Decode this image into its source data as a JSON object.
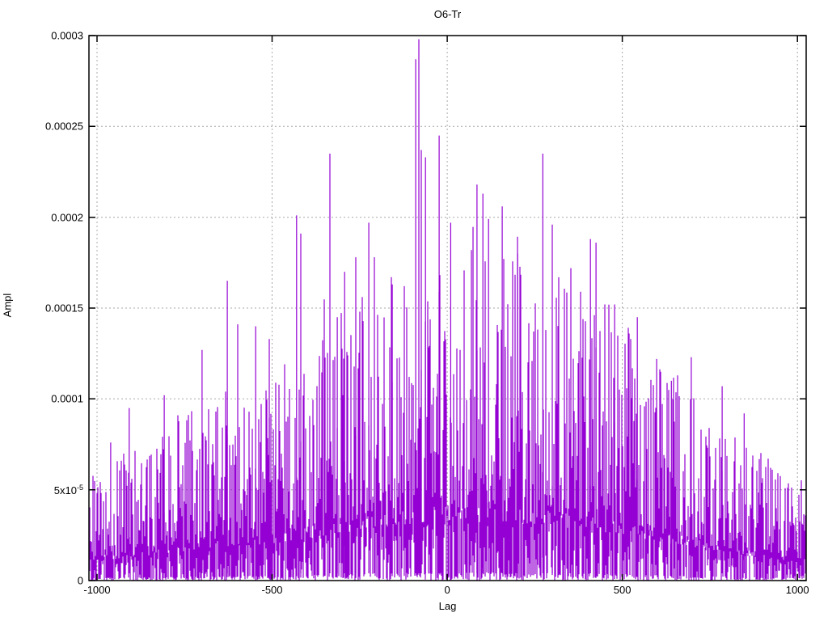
{
  "chart_data": {
    "type": "line",
    "title": "O6-Tr",
    "xlabel": "Lag",
    "ylabel": "Ampl",
    "xlim": [
      -1023,
      1025
    ],
    "ylim": [
      0,
      0.0003
    ],
    "line_color": "#9400d3",
    "background": "#ffffff",
    "border_color": "#000000",
    "grid": {
      "show": true,
      "style": "dotted",
      "color": "#a8a8a8"
    },
    "legend": {
      "show": false
    },
    "xticks": [
      {
        "value": -1000,
        "label": "-1000"
      },
      {
        "value": -500,
        "label": "-500"
      },
      {
        "value": 0,
        "label": "0"
      },
      {
        "value": 500,
        "label": "500"
      },
      {
        "value": 1000,
        "label": "1000"
      }
    ],
    "yticks": [
      {
        "value": 0,
        "label": "0"
      },
      {
        "value": 5e-05,
        "label_base": "5x10",
        "label_sup": "-5"
      },
      {
        "value": 0.0001,
        "label": "0.0001"
      },
      {
        "value": 0.00015,
        "label": "0.00015"
      },
      {
        "value": 0.0002,
        "label": "0.0002"
      },
      {
        "value": 0.00025,
        "label": "0.00025"
      },
      {
        "value": 0.0003,
        "label": "0.0003"
      }
    ],
    "series_summary": {
      "description": "Dense noisy amplitude-vs-lag trace (cross-correlation style), oscillating between ~0 and an envelope that rises from ~4e-5 at lags ±1000 to ~1.2e-4 near lag 0, with sparse tall spikes; global maximum ~0.000298 near lag -81.",
      "max_value": 0.000298,
      "max_value_lag": -81
    },
    "envelope_typical_max": [
      [
        -1023,
        3.6e-05
      ],
      [
        -900,
        4.6e-05
      ],
      [
        -800,
        5.2e-05
      ],
      [
        -700,
        6e-05
      ],
      [
        -600,
        6.6e-05
      ],
      [
        -500,
        7e-05
      ],
      [
        -400,
        8.2e-05
      ],
      [
        -300,
        9.2e-05
      ],
      [
        -200,
        0.000102
      ],
      [
        -100,
        0.000112
      ],
      [
        0,
        0.000115
      ],
      [
        100,
        0.000115
      ],
      [
        200,
        0.000112
      ],
      [
        300,
        0.000106
      ],
      [
        400,
        0.0001
      ],
      [
        500,
        9e-05
      ],
      [
        600,
        7.6e-05
      ],
      [
        700,
        6.6e-05
      ],
      [
        800,
        5.6e-05
      ],
      [
        900,
        4.4e-05
      ],
      [
        1025,
        3.6e-05
      ]
    ],
    "notable_peaks": [
      {
        "lag": -961,
        "ampl": 7.6e-05
      },
      {
        "lag": -908,
        "ampl": 9.5e-05
      },
      {
        "lag": -808,
        "ampl": 0.000102
      },
      {
        "lag": -700,
        "ampl": 0.000127
      },
      {
        "lag": -628,
        "ampl": 0.000165
      },
      {
        "lag": -547,
        "ampl": 0.00014
      },
      {
        "lag": -508,
        "ampl": 0.000133
      },
      {
        "lag": -430,
        "ampl": 0.000201
      },
      {
        "lag": -418,
        "ampl": 0.000191
      },
      {
        "lag": -335,
        "ampl": 0.000235
      },
      {
        "lag": -314,
        "ampl": 0.000145
      },
      {
        "lag": -293,
        "ampl": 0.00017
      },
      {
        "lag": -261,
        "ampl": 0.000178
      },
      {
        "lag": -224,
        "ampl": 0.000197
      },
      {
        "lag": -208,
        "ampl": 0.000178
      },
      {
        "lag": -157,
        "ampl": 0.000163
      },
      {
        "lag": -90,
        "ampl": 0.000287
      },
      {
        "lag": -81,
        "ampl": 0.000298
      },
      {
        "lag": -74,
        "ampl": 0.000237
      },
      {
        "lag": -62,
        "ampl": 0.000233
      },
      {
        "lag": -23,
        "ampl": 0.000245
      },
      {
        "lag": 10,
        "ampl": 0.000197
      },
      {
        "lag": 85,
        "ampl": 0.000218
      },
      {
        "lag": 102,
        "ampl": 0.000213
      },
      {
        "lag": 118,
        "ampl": 0.000199
      },
      {
        "lag": 157,
        "ampl": 0.000206
      },
      {
        "lag": 201,
        "ampl": 0.00018
      },
      {
        "lag": 273,
        "ampl": 0.000235
      },
      {
        "lag": 300,
        "ampl": 0.000196
      },
      {
        "lag": 353,
        "ampl": 0.000172
      },
      {
        "lag": 409,
        "ampl": 0.000188
      },
      {
        "lag": 425,
        "ampl": 0.000186
      },
      {
        "lag": 478,
        "ampl": 0.000152
      },
      {
        "lag": 543,
        "ampl": 0.000145
      },
      {
        "lag": 598,
        "ampl": 0.000122
      },
      {
        "lag": 640,
        "ampl": 0.00011
      },
      {
        "lag": 697,
        "ampl": 0.000123
      },
      {
        "lag": 785,
        "ampl": 0.000107
      },
      {
        "lag": 848,
        "ampl": 9.2e-05
      }
    ],
    "render_hints": {
      "seed": 20,
      "spike_probability": 0.022,
      "max_nonpeak_value": 0.00025
    }
  }
}
